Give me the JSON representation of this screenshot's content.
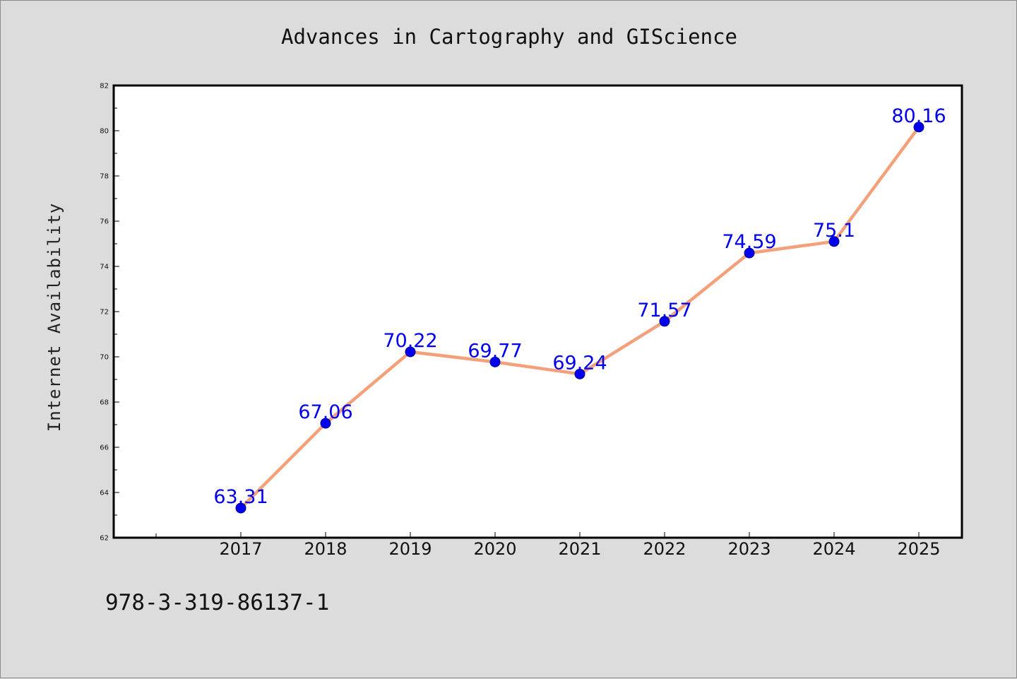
{
  "chart_data": {
    "type": "line",
    "title": "Advances in Cartography and GIScience",
    "xlabel": "",
    "ylabel": "Internet Availability",
    "x": [
      "2017",
      "2018",
      "2019",
      "2020",
      "2021",
      "2022",
      "2023",
      "2024",
      "2025"
    ],
    "series": [
      {
        "values": [
          63.31,
          67.06,
          70.22,
          69.77,
          69.24,
          71.57,
          74.59,
          75.1,
          80.16
        ],
        "labels": [
          "63.31",
          "67.06",
          "70.22",
          "69.77",
          "69.24",
          "71.57",
          "74.59",
          "75.1",
          "80.16"
        ]
      }
    ],
    "ylim": [
      62,
      82
    ],
    "y_ticks": [
      "62",
      "64",
      "66",
      "68",
      "70",
      "72",
      "74",
      "76",
      "78",
      "80",
      "82"
    ],
    "grid": false,
    "legend": "none",
    "colors": {
      "line": "#f4a07a",
      "marker": "#0000ee",
      "marker_edge": "#00008b",
      "data_label": "#0000ee",
      "background": "#dcdcdc",
      "plot_area": "#ffffff"
    }
  },
  "footer": {
    "code": "978-3-319-86137-1"
  }
}
